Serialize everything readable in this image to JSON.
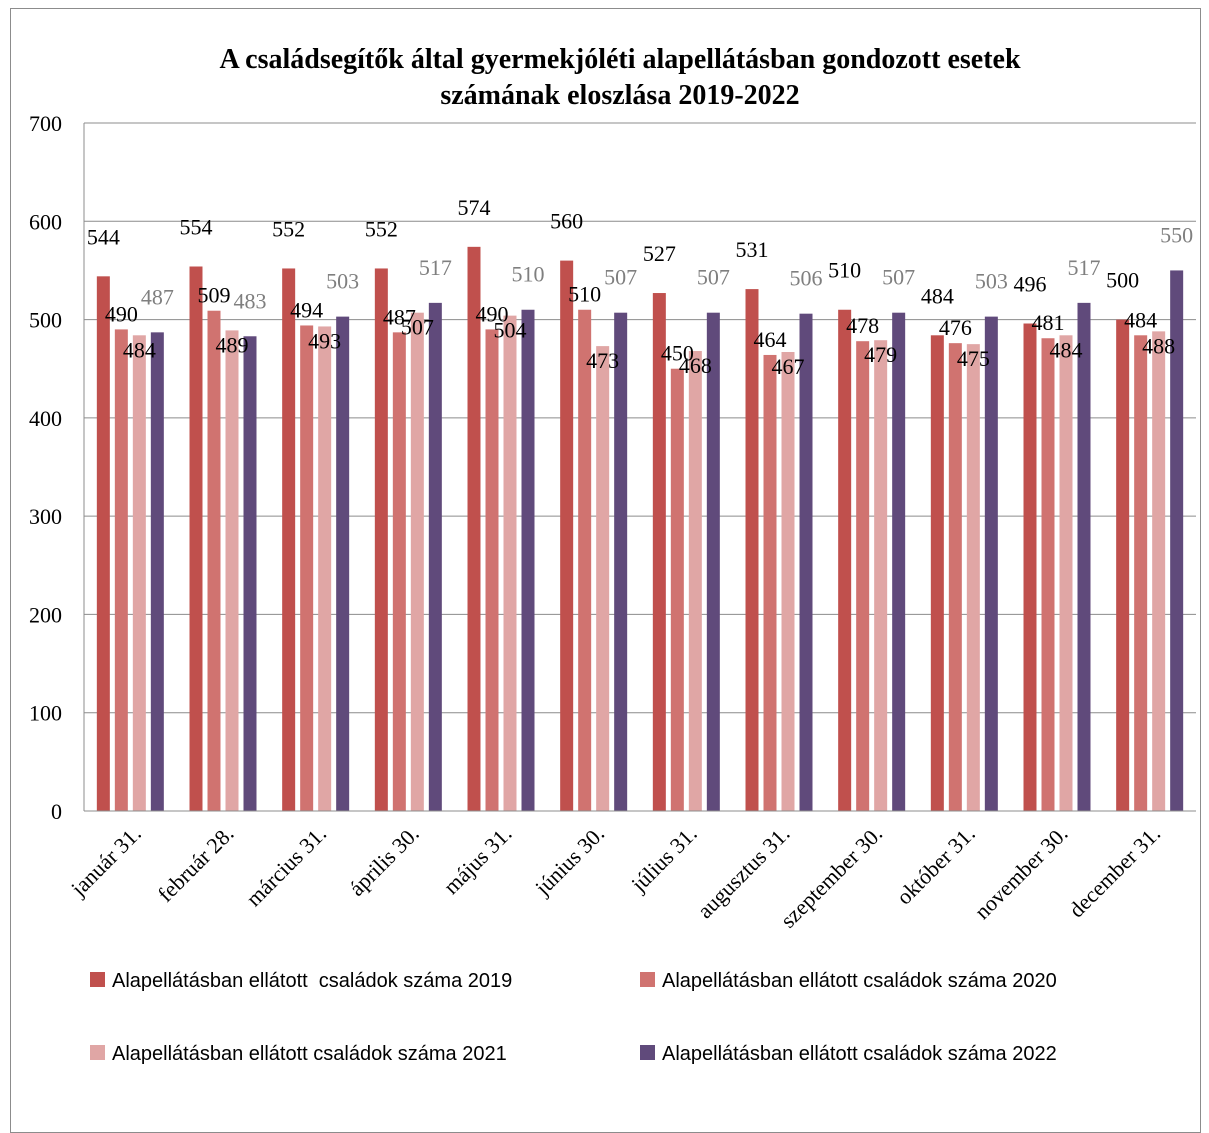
{
  "chart_data": {
    "type": "bar",
    "title_lines": [
      "A családsegítők által gyermekjóléti alapellátásban gondozott esetek",
      "számának eloszlása 2019-2022"
    ],
    "categories": [
      "január 31.",
      "február 28.",
      "március 31.",
      "április 30.",
      "május 31.",
      "június 30.",
      "július 31.",
      "augusztus 31.",
      "szeptember 30.",
      "október 31.",
      "november 30.",
      "december 31."
    ],
    "series": [
      {
        "name": "Alapellátásban ellátott  családok száma 2019",
        "color": "#C0504D",
        "label_color": "#000000",
        "values": [
          544,
          554,
          552,
          552,
          574,
          560,
          527,
          531,
          510,
          484,
          496,
          500
        ]
      },
      {
        "name": "Alapellátásban ellátott családok száma 2020",
        "color": "#D07370",
        "label_color": "#000000",
        "values": [
          490,
          509,
          494,
          487,
          490,
          510,
          450,
          464,
          478,
          476,
          481,
          484
        ]
      },
      {
        "name": "Alapellátásban ellátott családok száma 2021",
        "color": "#E0A6A5",
        "label_color": "#000000",
        "values": [
          484,
          489,
          493,
          507,
          504,
          473,
          468,
          467,
          479,
          475,
          484,
          488
        ]
      },
      {
        "name": "Alapellátásban ellátott családok száma 2022",
        "color": "#604A7B",
        "label_color": "#7F7F7F",
        "values": [
          487,
          483,
          503,
          517,
          510,
          507,
          507,
          506,
          507,
          503,
          517,
          550
        ]
      }
    ],
    "ylim": [
      0,
      700
    ],
    "yticks": [
      0,
      100,
      200,
      300,
      400,
      500,
      600,
      700
    ],
    "grid": true,
    "legend_position": "bottom"
  }
}
